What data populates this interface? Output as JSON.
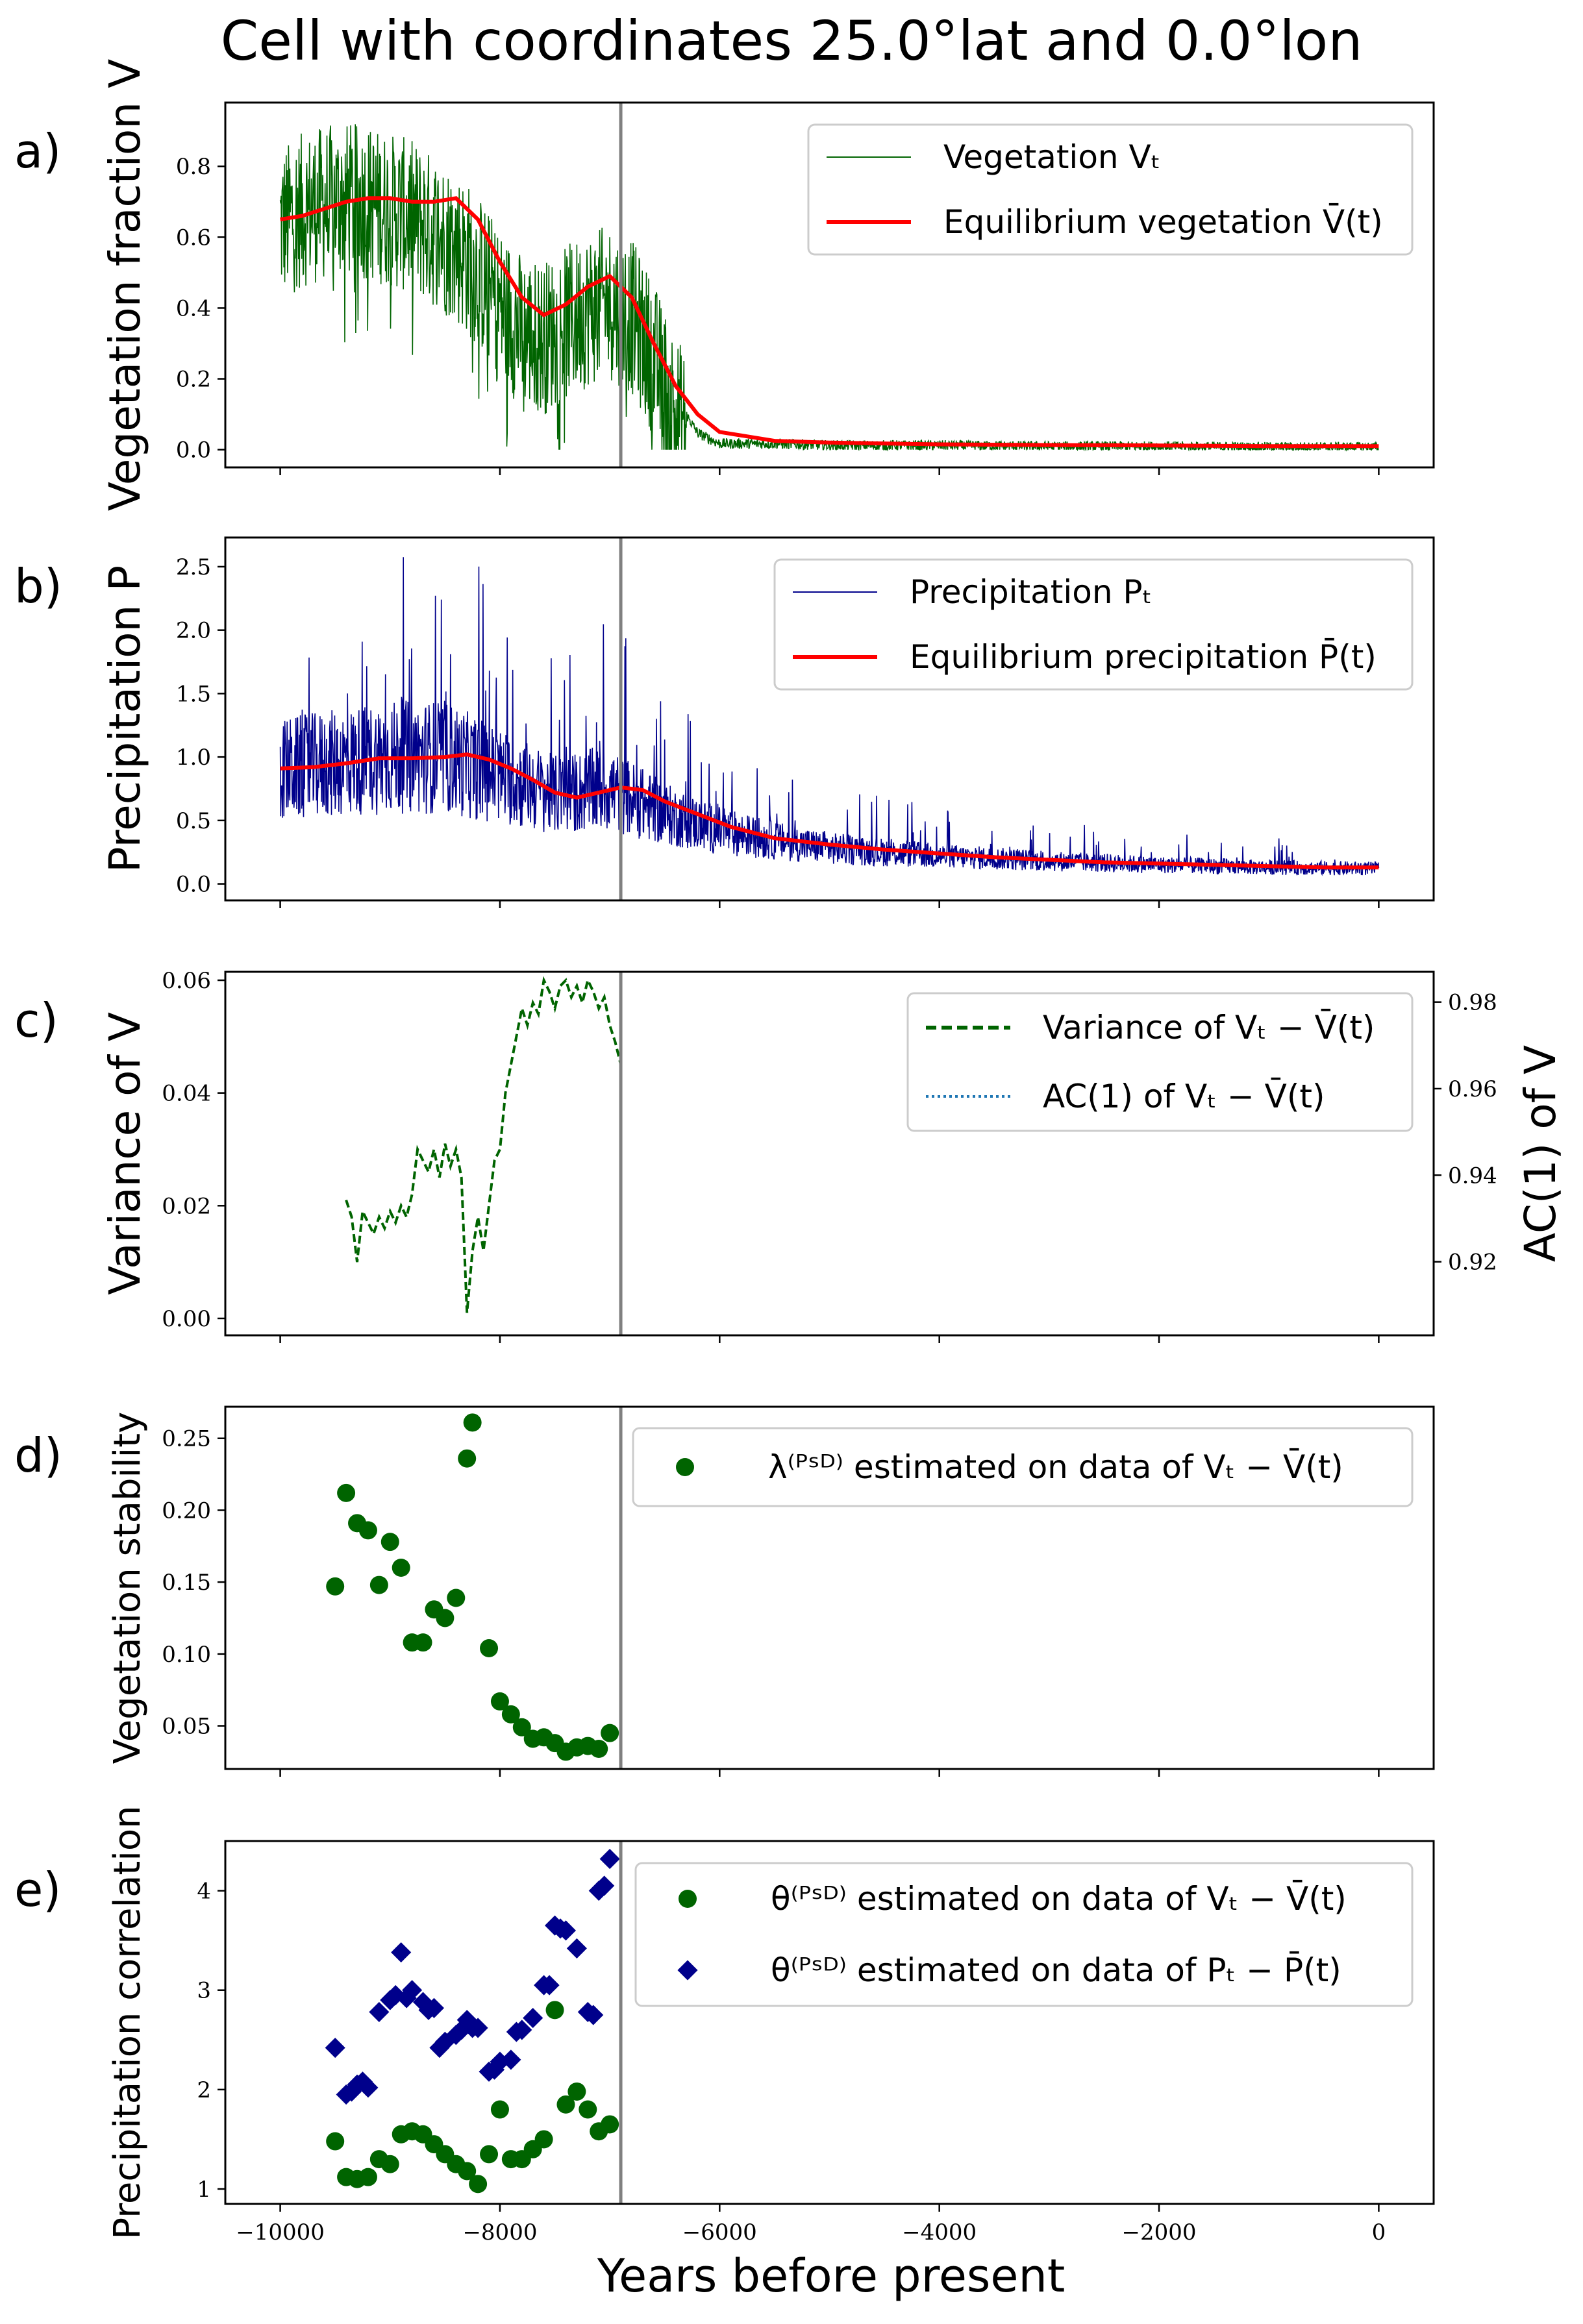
{
  "figure": {
    "title": "Cell with coordinates 25.0°lat and 0.0°lon",
    "xlabel": "Years before present",
    "xticks": [
      "−10000",
      "−8000",
      "−6000",
      "−4000",
      "−2000",
      "0"
    ],
    "event_year": -6900
  },
  "colors": {
    "vegetation": "#006400",
    "precipitation": "#00008b",
    "equilibrium": "#ff0000",
    "ac1": "#1f77b4",
    "event_line": "#808080"
  },
  "panels": {
    "a": {
      "letter": "a)",
      "ylabel": "Vegetation fraction V",
      "yticks": [
        "0.0",
        "0.2",
        "0.4",
        "0.6",
        "0.8"
      ],
      "legend": [
        "Vegetation Vₜ",
        "Equilibrium vegetation V̄(t)"
      ]
    },
    "b": {
      "letter": "b)",
      "ylabel": "Precipitation P",
      "yticks": [
        "0.0",
        "0.5",
        "1.0",
        "1.5",
        "2.0",
        "2.5"
      ],
      "legend": [
        "Precipitation Pₜ",
        "Equilibrium precipitation P̄(t)"
      ]
    },
    "c": {
      "letter": "c)",
      "ylabel": "Variance of V",
      "ylabel_right": "AC(1) of V",
      "yticks": [
        "0.00",
        "0.02",
        "0.04",
        "0.06"
      ],
      "yticks_right": [
        "0.92",
        "0.94",
        "0.96",
        "0.98"
      ],
      "legend": [
        "Variance of Vₜ − V̄(t)",
        "AC(1) of Vₜ − V̄(t)"
      ]
    },
    "d": {
      "letter": "d)",
      "ylabel": "Vegetation stability",
      "yticks": [
        "0.05",
        "0.10",
        "0.15",
        "0.20",
        "0.25"
      ],
      "legend": [
        "λ⁽ᴾˢᴰ⁾ estimated on data of Vₜ − V̄(t)"
      ]
    },
    "e": {
      "letter": "e)",
      "ylabel": "Precipitation correlation",
      "yticks": [
        "1",
        "2",
        "3",
        "4"
      ],
      "legend": [
        "θ⁽ᴾˢᴰ⁾ estimated on data of Vₜ − V̄(t)",
        "θ⁽ᴾˢᴰ⁾ estimated on data of Pₜ − P̄(t)"
      ]
    }
  },
  "chart_data": [
    {
      "type": "line",
      "panel": "a",
      "xlim": [
        -10500,
        500
      ],
      "ylim": [
        -0.05,
        0.98
      ],
      "series": [
        {
          "name": "Vegetation Vₜ",
          "style": "noisy",
          "color": "vegetation",
          "x": [
            -10000,
            -9800,
            -9600,
            -9400,
            -9200,
            -9000,
            -8800,
            -8600,
            -8400,
            -8200,
            -8000,
            -7800,
            -7600,
            -7400,
            -7200,
            -7000,
            -6800,
            -6600,
            -6400,
            -6200,
            -6000,
            -5500,
            -5000,
            -4000,
            -3000,
            -2000,
            -1000,
            0
          ],
          "y": [
            0.68,
            0.72,
            0.74,
            0.75,
            0.74,
            0.72,
            0.7,
            0.66,
            0.62,
            0.55,
            0.45,
            0.38,
            0.36,
            0.4,
            0.44,
            0.46,
            0.42,
            0.3,
            0.15,
            0.05,
            0.02,
            0.02,
            0.015,
            0.015,
            0.012,
            0.012,
            0.01,
            0.01
          ]
        },
        {
          "name": "Equilibrium vegetation V̄(t)",
          "color": "equilibrium",
          "x": [
            -10000,
            -9800,
            -9600,
            -9400,
            -9200,
            -9000,
            -8800,
            -8600,
            -8400,
            -8200,
            -8000,
            -7800,
            -7600,
            -7400,
            -7200,
            -7000,
            -6800,
            -6600,
            -6400,
            -6200,
            -6000,
            -5500,
            -5000,
            -4000,
            -3000,
            -2000,
            -1000,
            0
          ],
          "y": [
            0.65,
            0.66,
            0.68,
            0.7,
            0.71,
            0.71,
            0.7,
            0.7,
            0.71,
            0.65,
            0.53,
            0.43,
            0.38,
            0.41,
            0.46,
            0.49,
            0.43,
            0.3,
            0.18,
            0.1,
            0.05,
            0.025,
            0.02,
            0.015,
            0.013,
            0.012,
            0.01,
            0.01
          ]
        }
      ]
    },
    {
      "type": "line",
      "panel": "b",
      "xlim": [
        -10500,
        500
      ],
      "ylim": [
        -0.13,
        2.73
      ],
      "series": [
        {
          "name": "Precipitation Pₜ",
          "style": "noisy",
          "color": "precipitation",
          "x": [
            -10000,
            -9500,
            -9000,
            -8500,
            -8000,
            -7500,
            -7000,
            -6500,
            -6000,
            -5500,
            -5000,
            -4000,
            -3000,
            -2000,
            -1000,
            0
          ],
          "y": [
            0.9,
            0.95,
            1.0,
            1.0,
            0.85,
            0.7,
            0.75,
            0.55,
            0.42,
            0.34,
            0.28,
            0.22,
            0.18,
            0.15,
            0.13,
            0.12
          ]
        },
        {
          "name": "Equilibrium precipitation P̄(t)",
          "color": "equilibrium",
          "x": [
            -10000,
            -9700,
            -9400,
            -9100,
            -8800,
            -8500,
            -8300,
            -8100,
            -7900,
            -7700,
            -7500,
            -7300,
            -7100,
            -6900,
            -6700,
            -6500,
            -6200,
            -5900,
            -5500,
            -5000,
            -4500,
            -4000,
            -3500,
            -3000,
            -2500,
            -2000,
            -1500,
            -1000,
            -500,
            0
          ],
          "y": [
            0.91,
            0.92,
            0.95,
            0.99,
            0.99,
            1.0,
            1.02,
            0.98,
            0.91,
            0.82,
            0.72,
            0.68,
            0.72,
            0.76,
            0.74,
            0.65,
            0.55,
            0.45,
            0.36,
            0.31,
            0.27,
            0.24,
            0.21,
            0.19,
            0.17,
            0.16,
            0.15,
            0.14,
            0.13,
            0.13
          ]
        }
      ]
    },
    {
      "type": "line",
      "panel": "c",
      "xlim": [
        -10500,
        500
      ],
      "ylim": [
        -0.003,
        0.0615
      ],
      "y2lim": [
        0.903,
        0.987
      ],
      "series": [
        {
          "name": "Variance of Vₜ − V̄(t)",
          "style": "dashed",
          "color": "vegetation",
          "x": [
            -9400,
            -9350,
            -9300,
            -9250,
            -9200,
            -9150,
            -9100,
            -9050,
            -9000,
            -8950,
            -8900,
            -8850,
            -8800,
            -8750,
            -8700,
            -8650,
            -8600,
            -8550,
            -8500,
            -8450,
            -8400,
            -8350,
            -8300,
            -8250,
            -8200,
            -8150,
            -8100,
            -8050,
            -8000,
            -7950,
            -7900,
            -7850,
            -7800,
            -7750,
            -7700,
            -7650,
            -7600,
            -7550,
            -7500,
            -7450,
            -7400,
            -7350,
            -7300,
            -7250,
            -7200,
            -7150,
            -7100,
            -7050,
            -7000,
            -6950,
            -6900
          ],
          "y": [
            0.021,
            0.018,
            0.01,
            0.019,
            0.017,
            0.015,
            0.018,
            0.016,
            0.019,
            0.017,
            0.02,
            0.018,
            0.022,
            0.03,
            0.028,
            0.026,
            0.03,
            0.025,
            0.031,
            0.027,
            0.03,
            0.025,
            0.001,
            0.012,
            0.018,
            0.012,
            0.02,
            0.028,
            0.03,
            0.04,
            0.045,
            0.05,
            0.055,
            0.052,
            0.056,
            0.054,
            0.06,
            0.058,
            0.055,
            0.059,
            0.06,
            0.057,
            0.059,
            0.056,
            0.06,
            0.058,
            0.055,
            0.057,
            0.052,
            0.049,
            0.045
          ]
        },
        {
          "name": "AC(1) of Vₜ − V̄(t)",
          "style": "dotted",
          "color": "ac1",
          "axis": "right",
          "x": [],
          "y": []
        }
      ]
    },
    {
      "type": "scatter",
      "panel": "d",
      "xlim": [
        -10500,
        500
      ],
      "ylim": [
        0.02,
        0.272
      ],
      "series": [
        {
          "name": "λ⁽ᴾˢᴰ⁾ estimated on data of Vₜ − V̄(t)",
          "marker": "circle",
          "color": "vegetation",
          "x": [
            -9500,
            -9400,
            -9300,
            -9200,
            -9100,
            -9000,
            -8900,
            -8800,
            -8700,
            -8600,
            -8500,
            -8400,
            -8300,
            -8250,
            -8100,
            -8000,
            -7900,
            -7800,
            -7700,
            -7600,
            -7500,
            -7400,
            -7300,
            -7200,
            -7100,
            -7000
          ],
          "y": [
            0.147,
            0.212,
            0.191,
            0.186,
            0.148,
            0.178,
            0.16,
            0.108,
            0.108,
            0.131,
            0.125,
            0.139,
            0.236,
            0.261,
            0.104,
            0.067,
            0.058,
            0.049,
            0.041,
            0.042,
            0.038,
            0.032,
            0.035,
            0.036,
            0.034,
            0.045
          ]
        }
      ]
    },
    {
      "type": "scatter",
      "panel": "e",
      "xlim": [
        -10500,
        500
      ],
      "ylim": [
        0.85,
        4.5
      ],
      "series": [
        {
          "name": "θ⁽ᴾˢᴰ⁾ estimated on data of Vₜ − V̄(t)",
          "marker": "circle",
          "color": "vegetation",
          "x": [
            -9500,
            -9400,
            -9300,
            -9200,
            -9100,
            -9000,
            -8900,
            -8800,
            -8700,
            -8600,
            -8500,
            -8400,
            -8300,
            -8200,
            -8100,
            -8000,
            -7900,
            -7800,
            -7700,
            -7600,
            -7500,
            -7400,
            -7300,
            -7200,
            -7100,
            -7000
          ],
          "y": [
            1.48,
            1.12,
            1.1,
            1.12,
            1.3,
            1.25,
            1.55,
            1.58,
            1.55,
            1.45,
            1.35,
            1.25,
            1.18,
            1.05,
            1.35,
            1.8,
            1.3,
            1.3,
            1.4,
            1.5,
            2.8,
            1.85,
            1.98,
            1.8,
            1.58,
            1.65
          ]
        },
        {
          "name": "θ⁽ᴾˢᴰ⁾ estimated on data of Pₜ − P̄(t)",
          "marker": "diamond",
          "color": "precipitation",
          "x": [
            -9500,
            -9400,
            -9350,
            -9300,
            -9250,
            -9200,
            -9100,
            -9000,
            -8950,
            -8900,
            -8850,
            -8800,
            -8700,
            -8650,
            -8600,
            -8550,
            -8500,
            -8400,
            -8350,
            -8300,
            -8250,
            -8200,
            -8100,
            -8050,
            -8000,
            -7900,
            -7850,
            -7800,
            -7700,
            -7600,
            -7550,
            -7500,
            -7450,
            -7400,
            -7300,
            -7200,
            -7150,
            -7100,
            -7050,
            -7000
          ],
          "y": [
            2.42,
            1.95,
            1.98,
            2.05,
            2.08,
            2.02,
            2.78,
            2.9,
            2.95,
            3.38,
            2.92,
            3.0,
            2.88,
            2.8,
            2.82,
            2.42,
            2.48,
            2.55,
            2.6,
            2.7,
            2.62,
            2.62,
            2.18,
            2.2,
            2.28,
            2.3,
            2.58,
            2.6,
            2.72,
            3.05,
            3.05,
            3.65,
            3.62,
            3.6,
            3.42,
            2.78,
            2.75,
            4.0,
            4.05,
            4.32
          ]
        }
      ]
    }
  ]
}
